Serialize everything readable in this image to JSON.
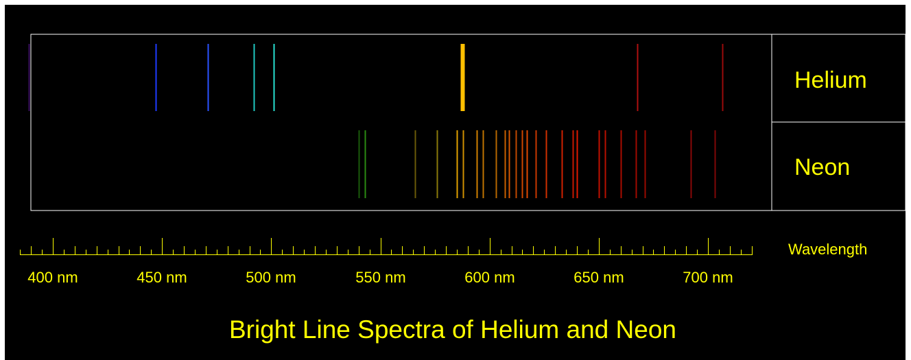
{
  "chart_data": {
    "type": "spectrum",
    "title": "Bright Line Spectra of Helium and Neon",
    "axis": {
      "label": "Wavelength",
      "unit": "nm",
      "range": [
        380,
        725
      ],
      "major_ticks": [
        400,
        450,
        500,
        550,
        600,
        650,
        700
      ],
      "tick_labels": [
        "400 nm",
        "450 nm",
        "500 nm",
        "550 nm",
        "600 nm",
        "650 nm",
        "700 nm"
      ],
      "minor_step": 5
    },
    "series": [
      {
        "name": "Helium",
        "lines": [
          {
            "wavelength": 389,
            "color": "#3a1060",
            "strong": false
          },
          {
            "wavelength": 447,
            "color": "#1e3bff",
            "strong": false
          },
          {
            "wavelength": 471,
            "color": "#2a52ff",
            "strong": false
          },
          {
            "wavelength": 492,
            "color": "#1fc8c0",
            "strong": false
          },
          {
            "wavelength": 501,
            "color": "#27e0d0",
            "strong": false
          },
          {
            "wavelength": 587.6,
            "color": "#ffc000",
            "strong": true
          },
          {
            "wavelength": 667.8,
            "color": "#b01010",
            "strong": false
          },
          {
            "wavelength": 706.5,
            "color": "#9a0a0a",
            "strong": false
          }
        ]
      },
      {
        "name": "Neon",
        "lines": [
          {
            "wavelength": 540,
            "color": "#1a5a0a"
          },
          {
            "wavelength": 543,
            "color": "#2a8a12"
          },
          {
            "wavelength": 566,
            "color": "#6a5a08"
          },
          {
            "wavelength": 576,
            "color": "#8a7a0a"
          },
          {
            "wavelength": 585,
            "color": "#e0a000"
          },
          {
            "wavelength": 588,
            "color": "#d09000"
          },
          {
            "wavelength": 594,
            "color": "#d08000"
          },
          {
            "wavelength": 597,
            "color": "#c07400"
          },
          {
            "wavelength": 603,
            "color": "#b86800"
          },
          {
            "wavelength": 607,
            "color": "#c86000"
          },
          {
            "wavelength": 609,
            "color": "#d85800"
          },
          {
            "wavelength": 612,
            "color": "#c04800"
          },
          {
            "wavelength": 615,
            "color": "#d04800"
          },
          {
            "wavelength": 617,
            "color": "#e04800"
          },
          {
            "wavelength": 621,
            "color": "#c83800"
          },
          {
            "wavelength": 626,
            "color": "#d03000"
          },
          {
            "wavelength": 633,
            "color": "#d02000"
          },
          {
            "wavelength": 638,
            "color": "#c81800"
          },
          {
            "wavelength": 640,
            "color": "#e01800"
          },
          {
            "wavelength": 650,
            "color": "#c01000"
          },
          {
            "wavelength": 653,
            "color": "#b81000"
          },
          {
            "wavelength": 660,
            "color": "#a80c00"
          },
          {
            "wavelength": 667,
            "color": "#a00a00"
          },
          {
            "wavelength": 671,
            "color": "#980a00"
          },
          {
            "wavelength": 692,
            "color": "#880808"
          },
          {
            "wavelength": 703,
            "color": "#800808"
          }
        ]
      }
    ],
    "colors": {
      "background": "#000000",
      "frame": "#ffffff",
      "text": "#ffff00",
      "ruler": "#ffff00"
    }
  }
}
